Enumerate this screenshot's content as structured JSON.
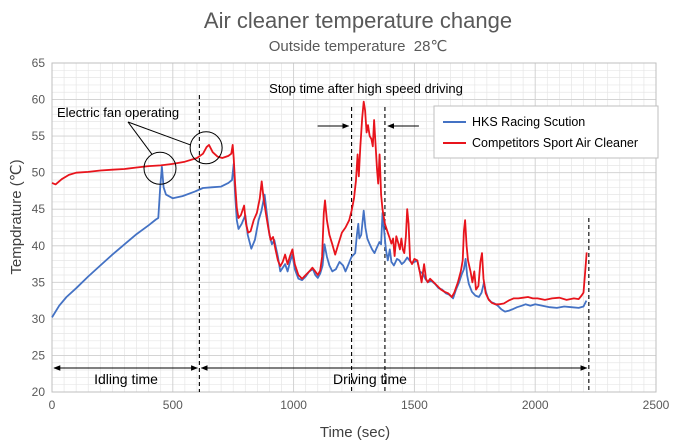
{
  "chart_data": {
    "type": "line",
    "title": "Air cleaner temperature change",
    "subtitle": "Outside temperature  28℃",
    "xlabel": "Time (sec)",
    "ylabel": "Tempdrature (℃)",
    "xlim": [
      0,
      2500
    ],
    "ylim": [
      20,
      65
    ],
    "xticks": [
      0,
      500,
      1000,
      1500,
      2000,
      2500
    ],
    "yticks": [
      20,
      25,
      30,
      35,
      40,
      45,
      50,
      55,
      60,
      65
    ],
    "grid": true,
    "legend_position": "top-right",
    "colors": {
      "hks": "#4472c4",
      "competitor": "#e8141c",
      "axis": "#bfbfbf",
      "grid": "#e6e6e6"
    },
    "series": [
      {
        "name": "HKS Racing Scution",
        "color": "#4472c4",
        "points": [
          [
            0,
            30.2
          ],
          [
            30,
            31.8
          ],
          [
            60,
            33.0
          ],
          [
            100,
            34.2
          ],
          [
            150,
            35.8
          ],
          [
            200,
            37.3
          ],
          [
            250,
            38.8
          ],
          [
            300,
            40.2
          ],
          [
            350,
            41.6
          ],
          [
            400,
            42.8
          ],
          [
            430,
            43.6
          ],
          [
            440,
            43.8
          ],
          [
            448,
            48.0
          ],
          [
            455,
            50.8
          ],
          [
            462,
            48.0
          ],
          [
            472,
            47.0
          ],
          [
            500,
            46.5
          ],
          [
            540,
            46.8
          ],
          [
            590,
            47.4
          ],
          [
            625,
            47.9
          ],
          [
            660,
            48.0
          ],
          [
            700,
            48.1
          ],
          [
            730,
            48.6
          ],
          [
            745,
            49.0
          ],
          [
            752,
            51.2
          ],
          [
            758,
            47.0
          ],
          [
            765,
            43.5
          ],
          [
            772,
            42.3
          ],
          [
            785,
            43.0
          ],
          [
            800,
            44.2
          ],
          [
            810,
            41.5
          ],
          [
            825,
            39.6
          ],
          [
            840,
            40.8
          ],
          [
            855,
            43.5
          ],
          [
            867,
            44.8
          ],
          [
            880,
            47.0
          ],
          [
            890,
            44.2
          ],
          [
            900,
            41.5
          ],
          [
            910,
            40.2
          ],
          [
            920,
            40.8
          ],
          [
            935,
            38.5
          ],
          [
            945,
            36.5
          ],
          [
            955,
            37.0
          ],
          [
            965,
            37.5
          ],
          [
            975,
            36.5
          ],
          [
            985,
            37.8
          ],
          [
            995,
            38.8
          ],
          [
            1005,
            36.8
          ],
          [
            1020,
            35.5
          ],
          [
            1035,
            35.3
          ],
          [
            1050,
            35.8
          ],
          [
            1065,
            36.5
          ],
          [
            1080,
            36.8
          ],
          [
            1090,
            36.0
          ],
          [
            1100,
            35.6
          ],
          [
            1110,
            36.2
          ],
          [
            1120,
            37.3
          ],
          [
            1128,
            40.2
          ],
          [
            1138,
            38.5
          ],
          [
            1148,
            37.3
          ],
          [
            1160,
            36.5
          ],
          [
            1175,
            36.8
          ],
          [
            1190,
            37.8
          ],
          [
            1205,
            37.3
          ],
          [
            1215,
            36.5
          ],
          [
            1225,
            37.3
          ],
          [
            1240,
            38.5
          ],
          [
            1255,
            39.0
          ],
          [
            1262,
            41.5
          ],
          [
            1268,
            43.0
          ],
          [
            1272,
            41.0
          ],
          [
            1280,
            41.5
          ],
          [
            1290,
            44.8
          ],
          [
            1297,
            42.5
          ],
          [
            1305,
            41.0
          ],
          [
            1315,
            40.2
          ],
          [
            1325,
            39.5
          ],
          [
            1335,
            39.0
          ],
          [
            1345,
            39.8
          ],
          [
            1355,
            40.5
          ],
          [
            1362,
            40.2
          ],
          [
            1368,
            44.5
          ],
          [
            1375,
            42.0
          ],
          [
            1382,
            39.5
          ],
          [
            1390,
            38.0
          ],
          [
            1398,
            39.5
          ],
          [
            1405,
            37.8
          ],
          [
            1415,
            37.3
          ],
          [
            1428,
            38.2
          ],
          [
            1438,
            38.0
          ],
          [
            1448,
            37.5
          ],
          [
            1458,
            37.8
          ],
          [
            1470,
            38.4
          ],
          [
            1480,
            38.0
          ],
          [
            1490,
            37.6
          ],
          [
            1500,
            37.8
          ],
          [
            1512,
            38.0
          ],
          [
            1522,
            36.5
          ],
          [
            1535,
            36.2
          ],
          [
            1545,
            35.5
          ],
          [
            1555,
            35.0
          ],
          [
            1570,
            35.2
          ],
          [
            1585,
            34.8
          ],
          [
            1600,
            34.2
          ],
          [
            1615,
            34.0
          ],
          [
            1630,
            33.5
          ],
          [
            1645,
            33.3
          ],
          [
            1660,
            32.8
          ],
          [
            1672,
            34.0
          ],
          [
            1685,
            35.0
          ],
          [
            1695,
            36.0
          ],
          [
            1705,
            36.8
          ],
          [
            1712,
            38.2
          ],
          [
            1718,
            36.0
          ],
          [
            1725,
            34.8
          ],
          [
            1738,
            33.7
          ],
          [
            1752,
            33.2
          ],
          [
            1767,
            33.0
          ],
          [
            1778,
            33.6
          ],
          [
            1788,
            35.0
          ],
          [
            1795,
            33.8
          ],
          [
            1805,
            32.8
          ],
          [
            1818,
            32.3
          ],
          [
            1832,
            32.1
          ],
          [
            1845,
            31.8
          ],
          [
            1860,
            31.3
          ],
          [
            1875,
            31.0
          ],
          [
            1890,
            31.1
          ],
          [
            1905,
            31.3
          ],
          [
            1925,
            31.6
          ],
          [
            1945,
            31.8
          ],
          [
            1960,
            32.0
          ],
          [
            1980,
            31.8
          ],
          [
            2000,
            32.0
          ],
          [
            2030,
            31.8
          ],
          [
            2060,
            31.6
          ],
          [
            2090,
            31.5
          ],
          [
            2120,
            31.7
          ],
          [
            2150,
            31.6
          ],
          [
            2180,
            31.5
          ],
          [
            2200,
            31.7
          ],
          [
            2212,
            32.5
          ]
        ]
      },
      {
        "name": "Competitors Sport Air Cleaner",
        "color": "#e8141c",
        "points": [
          [
            0,
            48.6
          ],
          [
            15,
            48.4
          ],
          [
            40,
            49.1
          ],
          [
            70,
            49.7
          ],
          [
            100,
            50.0
          ],
          [
            150,
            50.1
          ],
          [
            200,
            50.3
          ],
          [
            250,
            50.4
          ],
          [
            300,
            50.5
          ],
          [
            350,
            50.7
          ],
          [
            400,
            50.9
          ],
          [
            450,
            51.0
          ],
          [
            500,
            51.2
          ],
          [
            550,
            51.5
          ],
          [
            600,
            52.0
          ],
          [
            625,
            52.6
          ],
          [
            640,
            53.5
          ],
          [
            650,
            53.8
          ],
          [
            665,
            52.8
          ],
          [
            685,
            52.2
          ],
          [
            705,
            52.0
          ],
          [
            730,
            52.3
          ],
          [
            742,
            52.6
          ],
          [
            748,
            53.8
          ],
          [
            752,
            52.0
          ],
          [
            758,
            48.5
          ],
          [
            765,
            45.2
          ],
          [
            772,
            43.8
          ],
          [
            782,
            44.2
          ],
          [
            795,
            45.5
          ],
          [
            803,
            43.0
          ],
          [
            812,
            41.8
          ],
          [
            822,
            42.0
          ],
          [
            835,
            43.5
          ],
          [
            848,
            44.5
          ],
          [
            860,
            46.5
          ],
          [
            868,
            48.8
          ],
          [
            876,
            46.5
          ],
          [
            885,
            44.5
          ],
          [
            895,
            42.5
          ],
          [
            905,
            40.8
          ],
          [
            915,
            41.2
          ],
          [
            925,
            39.5
          ],
          [
            935,
            38.0
          ],
          [
            945,
            37.2
          ],
          [
            955,
            37.8
          ],
          [
            965,
            38.8
          ],
          [
            975,
            37.5
          ],
          [
            985,
            38.6
          ],
          [
            995,
            39.5
          ],
          [
            1005,
            37.5
          ],
          [
            1020,
            36.0
          ],
          [
            1035,
            35.5
          ],
          [
            1050,
            36.0
          ],
          [
            1065,
            36.5
          ],
          [
            1078,
            37.0
          ],
          [
            1090,
            36.5
          ],
          [
            1100,
            36.0
          ],
          [
            1110,
            36.6
          ],
          [
            1118,
            38.5
          ],
          [
            1125,
            44.5
          ],
          [
            1130,
            46.2
          ],
          [
            1138,
            43.5
          ],
          [
            1148,
            41.5
          ],
          [
            1160,
            40.2
          ],
          [
            1172,
            38.8
          ],
          [
            1185,
            40.2
          ],
          [
            1200,
            41.8
          ],
          [
            1215,
            42.5
          ],
          [
            1230,
            43.5
          ],
          [
            1240,
            44.8
          ],
          [
            1250,
            46.5
          ],
          [
            1258,
            48.8
          ],
          [
            1265,
            52.5
          ],
          [
            1270,
            49.5
          ],
          [
            1276,
            53.5
          ],
          [
            1284,
            57.5
          ],
          [
            1290,
            59.7
          ],
          [
            1296,
            58.5
          ],
          [
            1302,
            55.5
          ],
          [
            1308,
            56.5
          ],
          [
            1315,
            55.0
          ],
          [
            1322,
            54.6
          ],
          [
            1328,
            53.6
          ],
          [
            1333,
            57.2
          ],
          [
            1340,
            53.5
          ],
          [
            1345,
            50.5
          ],
          [
            1350,
            48.5
          ],
          [
            1356,
            52.5
          ],
          [
            1362,
            47.0
          ],
          [
            1368,
            45.0
          ],
          [
            1378,
            43.0
          ],
          [
            1388,
            42.0
          ],
          [
            1398,
            41.0
          ],
          [
            1405,
            40.3
          ],
          [
            1412,
            41.0
          ],
          [
            1418,
            38.6
          ],
          [
            1425,
            41.3
          ],
          [
            1432,
            40.5
          ],
          [
            1440,
            39.5
          ],
          [
            1446,
            41.0
          ],
          [
            1452,
            39.5
          ],
          [
            1458,
            39.0
          ],
          [
            1465,
            41.3
          ],
          [
            1470,
            45.0
          ],
          [
            1476,
            43.0
          ],
          [
            1482,
            38.0
          ],
          [
            1490,
            37.5
          ],
          [
            1500,
            38.2
          ],
          [
            1512,
            38.0
          ],
          [
            1522,
            36.5
          ],
          [
            1530,
            35.0
          ],
          [
            1540,
            37.5
          ],
          [
            1548,
            35.5
          ],
          [
            1555,
            35.0
          ],
          [
            1565,
            35.5
          ],
          [
            1580,
            35.0
          ],
          [
            1595,
            34.5
          ],
          [
            1610,
            34.0
          ],
          [
            1625,
            33.7
          ],
          [
            1640,
            33.5
          ],
          [
            1655,
            33.0
          ],
          [
            1665,
            33.6
          ],
          [
            1680,
            35.0
          ],
          [
            1692,
            36.5
          ],
          [
            1700,
            38.0
          ],
          [
            1705,
            42.0
          ],
          [
            1710,
            43.5
          ],
          [
            1716,
            40.0
          ],
          [
            1722,
            38.0
          ],
          [
            1732,
            36.5
          ],
          [
            1740,
            35.0
          ],
          [
            1748,
            36.5
          ],
          [
            1755,
            34.0
          ],
          [
            1765,
            34.5
          ],
          [
            1773,
            37.8
          ],
          [
            1780,
            39.0
          ],
          [
            1786,
            35.5
          ],
          [
            1795,
            33.5
          ],
          [
            1808,
            32.6
          ],
          [
            1820,
            32.2
          ],
          [
            1835,
            32.0
          ],
          [
            1850,
            32.0
          ],
          [
            1870,
            32.1
          ],
          [
            1890,
            32.5
          ],
          [
            1910,
            32.8
          ],
          [
            1930,
            32.8
          ],
          [
            1950,
            32.9
          ],
          [
            1970,
            33.0
          ],
          [
            1990,
            32.8
          ],
          [
            2010,
            32.8
          ],
          [
            2040,
            32.6
          ],
          [
            2070,
            32.8
          ],
          [
            2100,
            32.9
          ],
          [
            2130,
            32.6
          ],
          [
            2160,
            32.8
          ],
          [
            2180,
            32.7
          ],
          [
            2192,
            33.2
          ],
          [
            2200,
            33.6
          ],
          [
            2207,
            36.5
          ],
          [
            2213,
            39.1
          ]
        ]
      }
    ],
    "annotations": {
      "idling_text": "Idling time",
      "driving_text": "Driving time",
      "fan_text": "Electric fan operating",
      "stop_text": "Stop time after high speed driving",
      "dashed_lines_x": [
        610,
        1240,
        1378,
        2222
      ],
      "fan_circles": [
        {
          "x": 447,
          "y": 50.6
        },
        {
          "x": 638,
          "y": 53.4
        }
      ]
    }
  }
}
